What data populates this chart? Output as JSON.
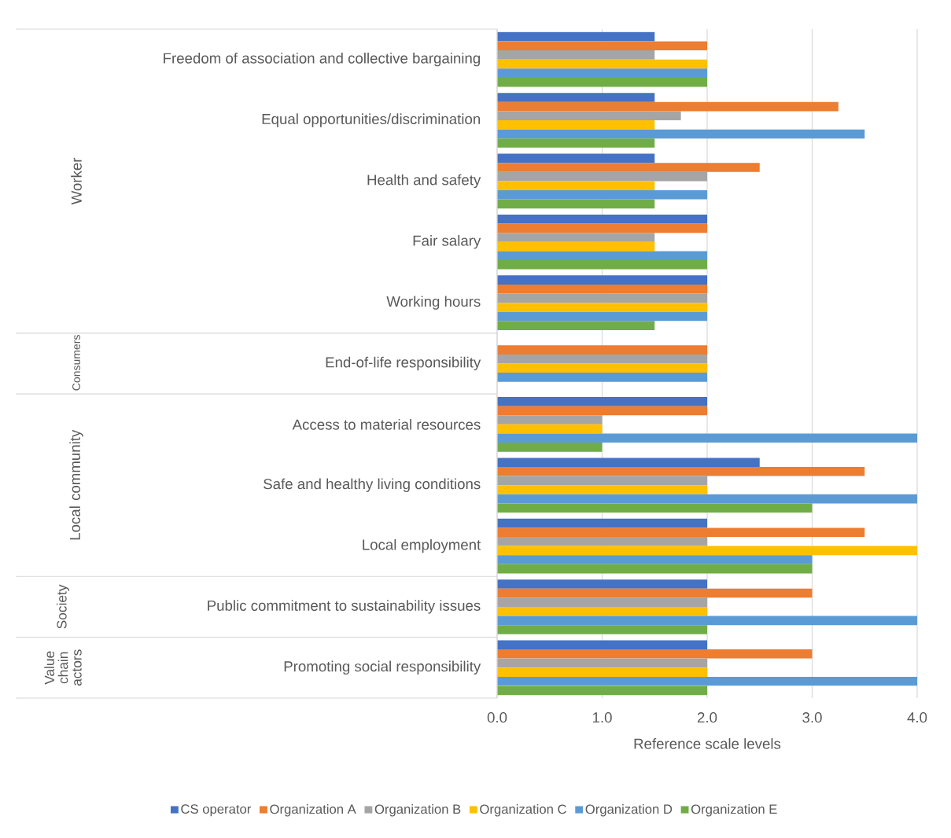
{
  "chart_data": {
    "type": "bar",
    "orientation": "horizontal",
    "xlabel": "Reference scale levels",
    "categories": [
      "Freedom of association and collective bargaining",
      "Equal opportunities/discrimination",
      "Health and safety",
      "Fair salary",
      "Working hours",
      "End-of-life responsibility",
      "Access to material resources",
      "Safe and healthy living conditions",
      "Local employment",
      "Public commitment to sustainability issues",
      "Promoting social responsibility"
    ],
    "series": [
      {
        "name": "CS operator",
        "color": "#4472c4",
        "values": [
          1.5,
          1.5,
          1.5,
          2,
          2,
          null,
          2,
          2.5,
          2,
          2,
          2
        ]
      },
      {
        "name": "Organization A",
        "color": "#ed7d31",
        "values": [
          2,
          3.25,
          2.5,
          2,
          2,
          2,
          2,
          3.5,
          3.5,
          3,
          3
        ]
      },
      {
        "name": "Organization B",
        "color": "#a5a5a5",
        "values": [
          1.5,
          1.75,
          2,
          1.5,
          2,
          2,
          1,
          2,
          2,
          2,
          2
        ]
      },
      {
        "name": "Organization C",
        "color": "#ffc000",
        "values": [
          2,
          1.5,
          1.5,
          1.5,
          2,
          2,
          1,
          2,
          4,
          2,
          2
        ]
      },
      {
        "name": "Organization D",
        "color": "#5b9bd5",
        "values": [
          2,
          3.5,
          2,
          2,
          2,
          2,
          4,
          4,
          3,
          4,
          4
        ]
      },
      {
        "name": "Organization E",
        "color": "#70ad47",
        "values": [
          2,
          1.5,
          1.5,
          2,
          1.5,
          null,
          1,
          3,
          3,
          2,
          2
        ]
      }
    ],
    "xlim": [
      0,
      4
    ],
    "xticks": [
      {
        "value": 0,
        "label": "0.0"
      },
      {
        "value": 1,
        "label": "1.0"
      },
      {
        "value": 2,
        "label": "2.0"
      },
      {
        "value": 3,
        "label": "3.0"
      },
      {
        "value": 4,
        "label": "4.0"
      }
    ],
    "grid": "x",
    "legend": "bottom",
    "annotations": [
      "Worker",
      "Consumers",
      "Local community",
      "Society",
      "Value chain actors"
    ]
  }
}
